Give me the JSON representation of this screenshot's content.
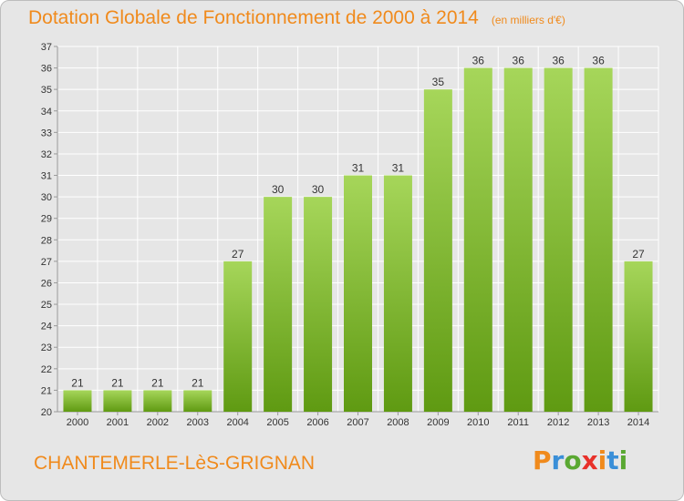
{
  "header": {
    "title": "Dotation Globale de Fonctionnement de 2000 à 2014",
    "unit": "(en milliers d'€)"
  },
  "footer": {
    "commune": "CHANTEMERLE-LèS-GRIGNAN",
    "logo": "Proxiti",
    "logo_colors": [
      "#f08a1c",
      "#3a8fd8",
      "#5aa832",
      "#e8312a",
      "#f08a1c",
      "#3a8fd8",
      "#5aa832"
    ]
  },
  "colors": {
    "bar_light": "#a6d65a",
    "bar_dark": "#5f9a12",
    "grid": "#ffffff",
    "background": "#e6e6e6",
    "title": "#f08a1c"
  },
  "chart_data": {
    "type": "bar",
    "categories": [
      "2000",
      "2001",
      "2002",
      "2003",
      "2004",
      "2005",
      "2006",
      "2007",
      "2008",
      "2009",
      "2010",
      "2011",
      "2012",
      "2013",
      "2014"
    ],
    "values": [
      21,
      21,
      21,
      21,
      27,
      30,
      30,
      31,
      31,
      35,
      36,
      36,
      36,
      36,
      27
    ],
    "ylim": [
      20,
      37
    ],
    "yticks": [
      20,
      21,
      22,
      23,
      24,
      25,
      26,
      27,
      28,
      29,
      30,
      31,
      32,
      33,
      34,
      35,
      36,
      37
    ],
    "grid": true,
    "legend": "none"
  }
}
